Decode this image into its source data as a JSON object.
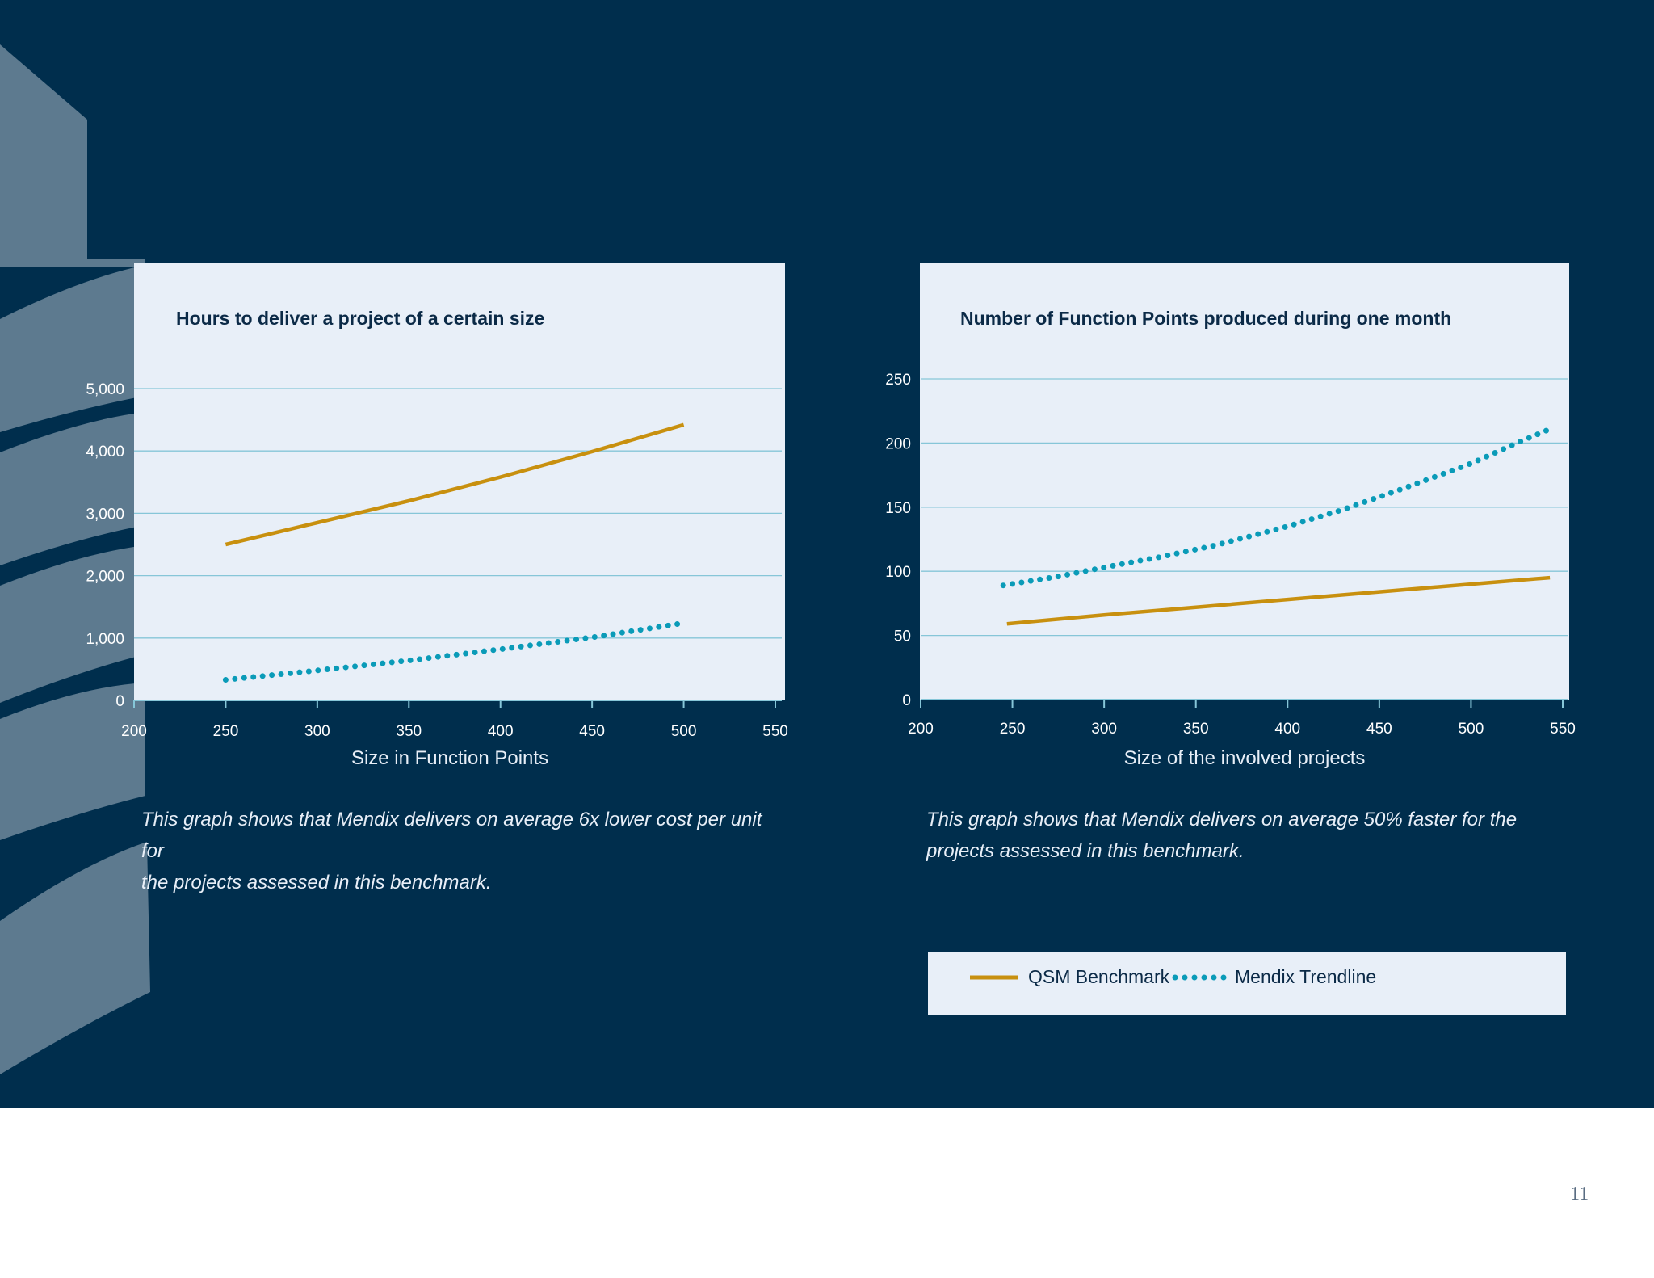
{
  "page": {
    "number": "11"
  },
  "colors": {
    "background": "#002e4d",
    "panel": "#e8eff8",
    "qsm": "#c8900f",
    "mendix": "#0a9bb8",
    "grid": "#86c6d8",
    "text_dark": "#0b2a47"
  },
  "legend": {
    "items": [
      {
        "label": "QSM Benchmark",
        "style": "solid",
        "color": "#c8900f"
      },
      {
        "label": "Mendix Trendline",
        "style": "dotted",
        "color": "#0a9bb8"
      }
    ]
  },
  "captions": [
    {
      "lines": [
        "This graph shows that Mendix delivers on average 6x lower cost per unit for",
        "the projects assessed in this benchmark."
      ]
    },
    {
      "lines": [
        "This graph shows that Mendix delivers on average 50% faster for the",
        "projects assessed in this benchmark."
      ]
    }
  ],
  "chart_data": [
    {
      "type": "line",
      "title": "Hours to deliver a project of a certain size",
      "xlabel": "Size in Function Points",
      "ylabel": "",
      "xlim": [
        200,
        550
      ],
      "ylim": [
        0,
        5000
      ],
      "xticks": [
        200,
        250,
        300,
        350,
        400,
        450,
        500,
        550
      ],
      "xtick_labels": [
        "200",
        "250",
        "300",
        "350",
        "400",
        "450",
        "500",
        "550"
      ],
      "yticks": [
        0,
        1000,
        2000,
        3000,
        4000,
        5000
      ],
      "ytick_labels": [
        "0",
        "1,000",
        "2,000",
        "3,000",
        "4,000",
        "5,000"
      ],
      "grid": true,
      "series": [
        {
          "name": "QSM Benchmark",
          "style": "solid",
          "color": "#c8900f",
          "x": [
            250,
            300,
            350,
            400,
            450,
            500
          ],
          "y": [
            2500,
            2850,
            3200,
            3580,
            3990,
            4420
          ]
        },
        {
          "name": "Mendix Trendline",
          "style": "dotted",
          "color": "#0a9bb8",
          "x": [
            250,
            300,
            350,
            400,
            450,
            500
          ],
          "y": [
            330,
            480,
            640,
            820,
            1010,
            1240
          ]
        }
      ]
    },
    {
      "type": "line",
      "title": "Number of Function Points produced during one month",
      "xlabel": "Size of the involved projects",
      "ylabel": "",
      "xlim": [
        200,
        550
      ],
      "ylim": [
        0,
        250
      ],
      "xticks": [
        200,
        250,
        300,
        350,
        400,
        450,
        500,
        550
      ],
      "xtick_labels": [
        "200",
        "250",
        "300",
        "350",
        "400",
        "450",
        "500",
        "550"
      ],
      "yticks": [
        0,
        50,
        100,
        150,
        200,
        250
      ],
      "ytick_labels": [
        "0",
        "50",
        "100",
        "150",
        "200",
        "250"
      ],
      "grid": true,
      "series": [
        {
          "name": "QSM Benchmark",
          "style": "solid",
          "color": "#c8900f",
          "x": [
            247,
            300,
            350,
            400,
            450,
            500,
            543
          ],
          "y": [
            59,
            66,
            72,
            78,
            84,
            90,
            95
          ]
        },
        {
          "name": "Mendix Trendline",
          "style": "dotted",
          "color": "#0a9bb8",
          "x": [
            245,
            275,
            300,
            330,
            360,
            400,
            430,
            460,
            500,
            525,
            545
          ],
          "y": [
            89,
            96,
            103,
            111,
            120,
            135,
            148,
            163,
            184,
            200,
            212
          ]
        }
      ]
    }
  ]
}
